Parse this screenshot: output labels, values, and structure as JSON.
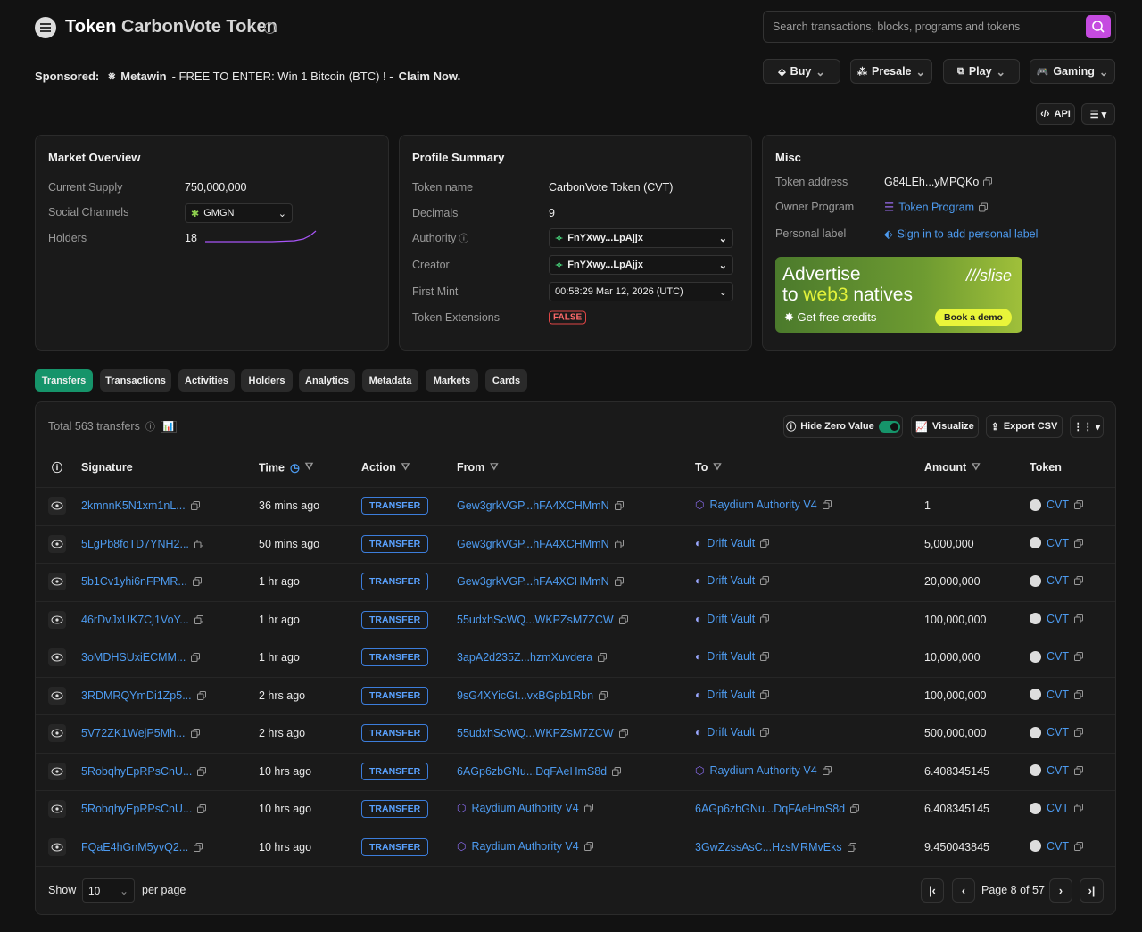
{
  "header": {
    "title_prefix": "Token",
    "title": "CarbonVote Token",
    "search_placeholder": "Search transactions, blocks, programs and tokens"
  },
  "sponsored": {
    "label": "Sponsored:",
    "brand": "Metawin",
    "text": "- FREE TO ENTER: Win 1 Bitcoin (BTC) ! -",
    "cta": "Claim Now."
  },
  "nav_buttons": [
    "Buy",
    "Presale",
    "Play",
    "Gaming"
  ],
  "api_button": "API",
  "market_overview": {
    "title": "Market Overview",
    "rows": [
      {
        "label": "Current Supply",
        "value": "750,000,000"
      },
      {
        "label": "Social Channels",
        "value": "GMGN"
      },
      {
        "label": "Holders",
        "value": "18"
      }
    ]
  },
  "profile_summary": {
    "title": "Profile Summary",
    "rows": [
      {
        "label": "Token name",
        "value": "CarbonVote Token (CVT)"
      },
      {
        "label": "Decimals",
        "value": "9"
      },
      {
        "label": "Authority",
        "value": "FnYXwy...LpAjjx"
      },
      {
        "label": "Creator",
        "value": "FnYXwy...LpAjjx"
      },
      {
        "label": "First Mint",
        "value": "00:58:29 Mar 12, 2026 (UTC)"
      },
      {
        "label": "Token Extensions",
        "value": "FALSE"
      }
    ]
  },
  "misc": {
    "title": "Misc",
    "rows": [
      {
        "label": "Token address",
        "value": "G84LEh...yMPQKo"
      },
      {
        "label": "Owner Program",
        "value": "Token Program"
      },
      {
        "label": "Personal label",
        "value": "Sign in to add personal label"
      }
    ],
    "ad": {
      "line1": "Advertise",
      "line2a": "to",
      "line2b": "web3",
      "line2c": "natives",
      "brand": "slise",
      "offer": "Get free credits",
      "cta": "Book a demo"
    }
  },
  "tabs": [
    "Transfers",
    "Transactions",
    "Activities",
    "Holders",
    "Analytics",
    "Metadata",
    "Markets",
    "Cards"
  ],
  "table": {
    "total": "Total 563 transfers",
    "buttons": [
      "Hide Zero Value",
      "Visualize",
      "Export CSV"
    ],
    "columns": [
      "Signature",
      "Time",
      "Action",
      "From",
      "To",
      "Amount",
      "Token"
    ],
    "rows": [
      {
        "signature": "2kmnnK5N1xm1nL...",
        "time": "36 mins ago",
        "action": "TRANSFER",
        "from": {
          "text": "Gew3grkVGP...hFA4XCHMmN"
        },
        "to": {
          "text": "Raydium Authority V4",
          "icon": "raydium"
        },
        "amount": "1",
        "token": "CVT"
      },
      {
        "signature": "5LgPb8foTD7YNH2...",
        "time": "50 mins ago",
        "action": "TRANSFER",
        "from": {
          "text": "Gew3grkVGP...hFA4XCHMmN"
        },
        "to": {
          "text": "Drift Vault",
          "icon": "drift"
        },
        "amount": "5,000,000",
        "token": "CVT"
      },
      {
        "signature": "5b1Cv1yhi6nFPMR...",
        "time": "1 hr ago",
        "action": "TRANSFER",
        "from": {
          "text": "Gew3grkVGP...hFA4XCHMmN"
        },
        "to": {
          "text": "Drift Vault",
          "icon": "drift"
        },
        "amount": "20,000,000",
        "token": "CVT"
      },
      {
        "signature": "46rDvJxUK7Cj1VoY...",
        "time": "1 hr ago",
        "action": "TRANSFER",
        "from": {
          "text": "55udxhScWQ...WKPZsM7ZCW"
        },
        "to": {
          "text": "Drift Vault",
          "icon": "drift"
        },
        "amount": "100,000,000",
        "token": "CVT"
      },
      {
        "signature": "3oMDHSUxiECMM...",
        "time": "1 hr ago",
        "action": "TRANSFER",
        "from": {
          "text": "3apA2d235Z...hzmXuvdera"
        },
        "to": {
          "text": "Drift Vault",
          "icon": "drift"
        },
        "amount": "10,000,000",
        "token": "CVT"
      },
      {
        "signature": "3RDMRQYmDi1Zp5...",
        "time": "2 hrs ago",
        "action": "TRANSFER",
        "from": {
          "text": "9sG4XYicGt...vxBGpb1Rbn"
        },
        "to": {
          "text": "Drift Vault",
          "icon": "drift"
        },
        "amount": "100,000,000",
        "token": "CVT"
      },
      {
        "signature": "5V72ZK1WejP5Mh...",
        "time": "2 hrs ago",
        "action": "TRANSFER",
        "from": {
          "text": "55udxhScWQ...WKPZsM7ZCW"
        },
        "to": {
          "text": "Drift Vault",
          "icon": "drift"
        },
        "amount": "500,000,000",
        "token": "CVT"
      },
      {
        "signature": "5RobqhyEpRPsCnU...",
        "time": "10 hrs ago",
        "action": "TRANSFER",
        "from": {
          "text": "6AGp6zbGNu...DqFAeHmS8d"
        },
        "to": {
          "text": "Raydium Authority V4",
          "icon": "raydium"
        },
        "amount": "6.408345145",
        "token": "CVT"
      },
      {
        "signature": "5RobqhyEpRPsCnU...",
        "time": "10 hrs ago",
        "action": "TRANSFER",
        "from": {
          "text": "Raydium Authority V4",
          "icon": "raydium"
        },
        "to": {
          "text": "6AGp6zbGNu...DqFAeHmS8d"
        },
        "amount": "6.408345145",
        "token": "CVT"
      },
      {
        "signature": "FQaE4hGnM5yvQ2...",
        "time": "10 hrs ago",
        "action": "TRANSFER",
        "from": {
          "text": "Raydium Authority V4",
          "icon": "raydium"
        },
        "to": {
          "text": "3GwZzssAsC...HzsMRMvEks"
        },
        "amount": "9.450043845",
        "token": "CVT"
      }
    ]
  },
  "pagination": {
    "show": "Show",
    "per_page_value": "10",
    "per_page": "per page",
    "page": "Page 8 of 57"
  }
}
